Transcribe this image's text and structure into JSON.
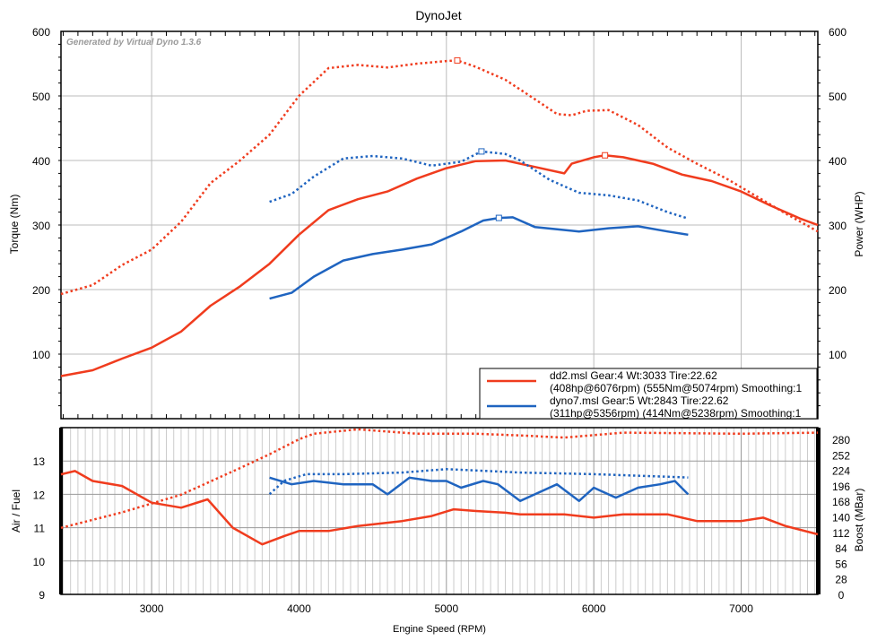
{
  "chart_data": [
    {
      "type": "line",
      "title": "DynoJet",
      "watermark": "Generated by Virtual Dyno 1.3.6",
      "xlabel": "Engine Speed (RPM)",
      "ylabel": "Torque (Nm)",
      "y2label": "Power (WHP)",
      "xlim": [
        2385,
        7520
      ],
      "ylim": [
        0,
        600
      ],
      "y2lim": [
        0,
        600
      ],
      "xticks": [
        3000,
        4000,
        5000,
        6000,
        7000
      ],
      "yticks": [
        100,
        200,
        300,
        400,
        500,
        600
      ],
      "legend_position": "bottom-right",
      "series": [
        {
          "name": "dd2 torque",
          "file": "dd2.msl",
          "style": "dotted",
          "color": "#f03c1e",
          "axis": "left",
          "peak": [
            5074,
            555
          ],
          "x": [
            2385,
            2600,
            2800,
            3000,
            3200,
            3400,
            3600,
            3800,
            4000,
            4200,
            4400,
            4600,
            4800,
            5000,
            5074,
            5200,
            5400,
            5600,
            5750,
            5850,
            5950,
            6100,
            6300,
            6500,
            6700,
            6900,
            7100,
            7300,
            7520
          ],
          "y": [
            193,
            207,
            238,
            262,
            305,
            365,
            400,
            440,
            500,
            543,
            548,
            544,
            550,
            554,
            555,
            545,
            525,
            495,
            472,
            470,
            477,
            478,
            455,
            420,
            395,
            372,
            345,
            318,
            290
          ]
        },
        {
          "name": "dd2 power",
          "file": "dd2.msl",
          "style": "solid",
          "color": "#f03c1e",
          "axis": "right",
          "peak": [
            6076,
            408
          ],
          "x": [
            2385,
            2600,
            2800,
            3000,
            3200,
            3400,
            3600,
            3800,
            4000,
            4200,
            4400,
            4600,
            4800,
            5000,
            5200,
            5400,
            5600,
            5800,
            5850,
            6000,
            6076,
            6200,
            6400,
            6600,
            6800,
            7000,
            7200,
            7400,
            7520
          ],
          "y": [
            66,
            75,
            93,
            110,
            135,
            175,
            205,
            240,
            285,
            323,
            340,
            352,
            372,
            388,
            399,
            400,
            390,
            380,
            395,
            405,
            408,
            405,
            395,
            378,
            368,
            352,
            330,
            310,
            300
          ]
        },
        {
          "name": "dyno7 torque",
          "file": "dyno7.msl",
          "style": "dotted",
          "color": "#1f64c0",
          "axis": "left",
          "peak": [
            5238,
            414
          ],
          "x": [
            3800,
            3950,
            4100,
            4300,
            4500,
            4700,
            4900,
            5100,
            5238,
            5400,
            5500,
            5700,
            5900,
            6100,
            6300,
            6500,
            6640
          ],
          "y": [
            336,
            348,
            375,
            403,
            407,
            403,
            392,
            398,
            414,
            410,
            400,
            370,
            350,
            346,
            338,
            320,
            310
          ]
        },
        {
          "name": "dyno7 power",
          "file": "dyno7.msl",
          "style": "solid",
          "color": "#1f64c0",
          "axis": "right",
          "peak": [
            5356,
            311
          ],
          "x": [
            3800,
            3950,
            4100,
            4300,
            4500,
            4700,
            4900,
            5100,
            5250,
            5356,
            5450,
            5600,
            5900,
            6100,
            6300,
            6500,
            6640
          ],
          "y": [
            186,
            195,
            220,
            245,
            255,
            262,
            270,
            290,
            307,
            311,
            312,
            297,
            290,
            295,
            298,
            290,
            285
          ]
        }
      ],
      "legend": [
        {
          "line1": "dd2.msl Gear:4 Wt:3033 Tire:22.62",
          "line2": "(408hp@6076rpm) (555Nm@5074rpm) Smoothing:1",
          "color": "#f03c1e"
        },
        {
          "line1": "dyno7.msl Gear:5 Wt:2843 Tire:22.62",
          "line2": "(311hp@5356rpm) (414Nm@5238rpm) Smoothing:1",
          "color": "#1f64c0"
        }
      ]
    },
    {
      "type": "line",
      "xlabel": "Engine Speed (RPM)",
      "ylabel": "Air / Fuel",
      "y2label": "Boost (MBar)",
      "xlim": [
        2385,
        7520
      ],
      "ylim": [
        9,
        14
      ],
      "y2lim": [
        0,
        301
      ],
      "yticks": [
        9,
        10,
        11,
        12,
        13
      ],
      "y2ticks": [
        0,
        28,
        56,
        84,
        112,
        140,
        168,
        196,
        224,
        252,
        280
      ],
      "series": [
        {
          "name": "dd2 AFR",
          "style": "solid",
          "color": "#f03c1e",
          "axis": "left",
          "x": [
            2385,
            2480,
            2600,
            2800,
            3000,
            3200,
            3380,
            3550,
            3750,
            3900,
            4000,
            4200,
            4400,
            4700,
            4900,
            5050,
            5200,
            5400,
            5500,
            5800,
            6000,
            6200,
            6500,
            6700,
            7000,
            7150,
            7300,
            7520
          ],
          "y": [
            12.6,
            12.7,
            12.4,
            12.25,
            11.75,
            11.6,
            11.85,
            11.0,
            10.5,
            10.75,
            10.9,
            10.9,
            11.05,
            11.2,
            11.35,
            11.55,
            11.5,
            11.45,
            11.4,
            11.4,
            11.3,
            11.4,
            11.4,
            11.2,
            11.2,
            11.3,
            11.05,
            10.8
          ]
        },
        {
          "name": "dd2 boost",
          "style": "dotted",
          "color": "#f03c1e",
          "axis": "right",
          "x": [
            2385,
            2800,
            3200,
            3600,
            3800,
            4000,
            4100,
            4400,
            4800,
            5200,
            5500,
            5800,
            6200,
            7000,
            7520
          ],
          "y": [
            120,
            148,
            180,
            228,
            253,
            280,
            290,
            298,
            290,
            290,
            287,
            283,
            292,
            290,
            292
          ]
        },
        {
          "name": "dyno7 AFR",
          "style": "solid",
          "color": "#1f64c0",
          "axis": "left",
          "x": [
            3800,
            3950,
            4100,
            4300,
            4500,
            4600,
            4750,
            4900,
            5000,
            5100,
            5250,
            5350,
            5500,
            5600,
            5750,
            5900,
            6000,
            6150,
            6300,
            6450,
            6550,
            6640
          ],
          "y": [
            12.5,
            12.3,
            12.4,
            12.3,
            12.3,
            12.0,
            12.5,
            12.4,
            12.4,
            12.2,
            12.4,
            12.3,
            11.8,
            12.0,
            12.3,
            11.8,
            12.2,
            11.9,
            12.2,
            12.3,
            12.4,
            12.0
          ]
        },
        {
          "name": "dyno7 boost",
          "style": "dotted",
          "color": "#1f64c0",
          "axis": "right",
          "x": [
            3800,
            3900,
            4050,
            4300,
            4700,
            5000,
            5500,
            6000,
            6640
          ],
          "y": [
            181,
            205,
            217,
            217,
            220,
            226,
            220,
            217,
            211
          ]
        }
      ]
    }
  ]
}
